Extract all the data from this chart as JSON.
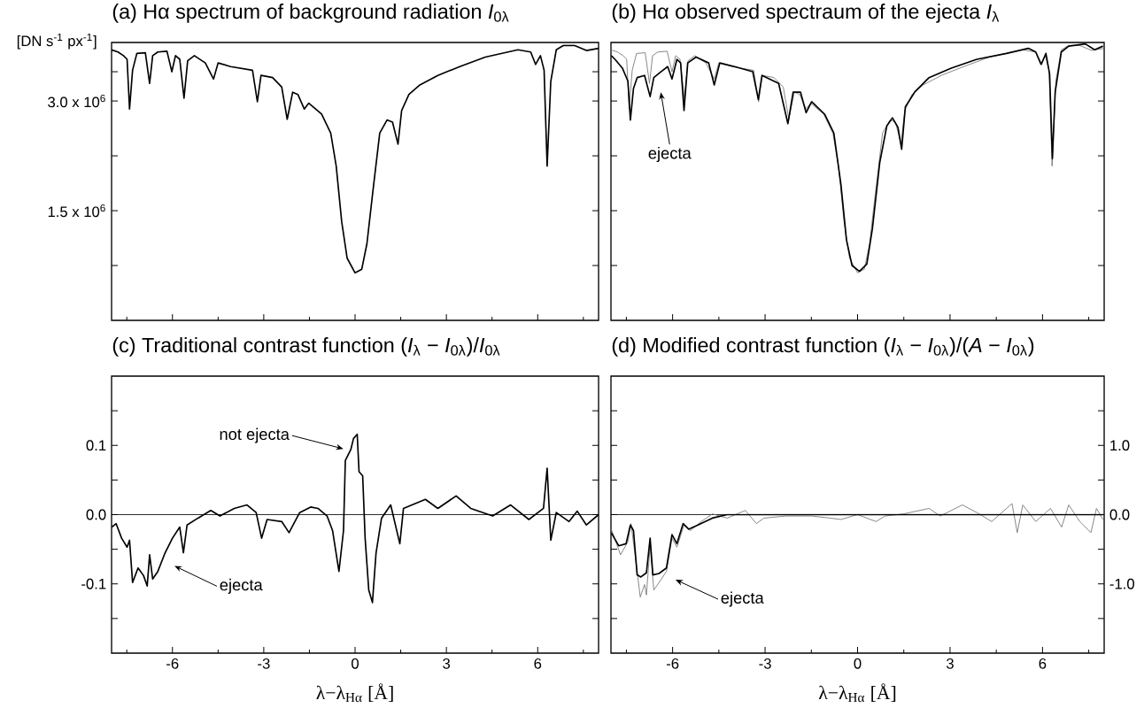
{
  "chart_data": [
    {
      "type": "line",
      "title": "(a) Hα spectrum of background radiation  *I*$_{0λ}$",
      "ylabel": "[DN s$^{-1}$ px$^{-1}$]",
      "xlim": [
        -8,
        8
      ],
      "ylim": [
        0,
        3800000
      ],
      "xticks": [
        {
          "value": -7.5,
          "label": null
        },
        -6,
        {
          "value": -4.5,
          "label": null
        },
        -3,
        {
          "value": -1.5,
          "label": null
        },
        0,
        {
          "value": 1.5,
          "label": null
        },
        3,
        {
          "value": 4.5,
          "label": null
        },
        6,
        {
          "value": 7.5,
          "label": null
        }
      ],
      "yticks": [
        {
          "value": 750000,
          "label": null
        },
        {
          "value": 1500000,
          "label": "1.5 x 10$^{6}$"
        },
        {
          "value": 2250000,
          "label": null
        },
        {
          "value": 3000000,
          "label": "3.0 x 10$^{6}$"
        },
        {
          "value": 3400000,
          "label": null
        }
      ],
      "tick_labels": "y",
      "series": [
        {
          "color": "#000000",
          "x": [
            -8.0,
            -7.79,
            -7.61,
            -7.49,
            -7.41,
            -7.31,
            -7.17,
            -6.89,
            -6.75,
            -6.65,
            -6.48,
            -6.18,
            -6.02,
            -5.9,
            -5.76,
            -5.62,
            -5.5,
            -5.28,
            -4.92,
            -4.65,
            -4.5,
            -4.09,
            -3.37,
            -3.21,
            -3.09,
            -2.71,
            -2.41,
            -2.23,
            -2.05,
            -1.88,
            -1.67,
            -1.52,
            -1.1,
            -0.8,
            -0.62,
            -0.44,
            -0.26,
            0,
            0.22,
            0.39,
            0.57,
            0.81,
            1.05,
            1.23,
            1.41,
            1.53,
            1.77,
            2.13,
            2.72,
            3.44,
            4.28,
            5.35,
            5.77,
            5.93,
            6.09,
            6.21,
            6.31,
            6.43,
            6.61,
            6.85,
            7.2,
            7.6,
            8.0
          ],
          "values": [
            3700000,
            3670000,
            3620000,
            3570000,
            2890000,
            3420000,
            3650000,
            3660000,
            3240000,
            3620000,
            3670000,
            3680000,
            3400000,
            3620000,
            3570000,
            3040000,
            3550000,
            3620000,
            3520000,
            3300000,
            3520000,
            3470000,
            3420000,
            2990000,
            3350000,
            3320000,
            3190000,
            2750000,
            3120000,
            3090000,
            2890000,
            2970000,
            2820000,
            2560000,
            2110000,
            1350000,
            850000,
            650000,
            700000,
            1050000,
            1710000,
            2560000,
            2740000,
            2710000,
            2410000,
            2870000,
            3090000,
            3220000,
            3350000,
            3470000,
            3600000,
            3700000,
            3670000,
            3500000,
            3620000,
            3420000,
            2110000,
            3270000,
            3700000,
            3760000,
            3760000,
            3690000,
            3720000
          ]
        }
      ]
    },
    {
      "type": "line",
      "title": "(b) Hα observed spectraum of the ejecta  *I*$_{λ}$",
      "xlim": [
        -8,
        8
      ],
      "ylim": [
        0,
        3800000
      ],
      "xticks": [
        {
          "value": -7.5,
          "label": null
        },
        -6,
        {
          "value": -4.5,
          "label": null
        },
        -3,
        {
          "value": -1.5,
          "label": null
        },
        0,
        {
          "value": 1.5,
          "label": null
        },
        3,
        {
          "value": 4.5,
          "label": null
        },
        6,
        {
          "value": 7.5,
          "label": null
        }
      ],
      "tick_labels": false,
      "yticks": [
        {
          "value": 750000,
          "label": null
        },
        {
          "value": 1500000,
          "label": null
        },
        {
          "value": 2250000,
          "label": null
        },
        {
          "value": 3000000,
          "label": null
        },
        {
          "value": 3400000,
          "label": null
        }
      ],
      "annotations": [
        "ejecta"
      ],
      "series": [
        {
          "color": "#707070",
          "x": [
            -8.0,
            -7.79,
            -7.61,
            -7.49,
            -7.41,
            -7.31,
            -7.17,
            -6.89,
            -6.75,
            -6.65,
            -6.48,
            -6.18,
            -6.02,
            -5.9,
            -5.76,
            -5.62,
            -5.5,
            -5.28,
            -4.92,
            -4.65,
            -4.5,
            -4.09,
            -3.37,
            -3.21,
            -3.09,
            -2.71,
            -2.41,
            -2.23,
            -2.05,
            -1.88,
            -1.67,
            -1.52,
            -1.1,
            -0.8,
            -0.62,
            -0.44,
            -0.26,
            0,
            0.22,
            0.39,
            0.57,
            0.81,
            1.05,
            1.23,
            1.41,
            1.53,
            1.77,
            2.13,
            2.72,
            3.44,
            4.28,
            5.35,
            5.77,
            5.93,
            6.09,
            6.21,
            6.31,
            6.43,
            6.61,
            6.85,
            7.2,
            7.6,
            8.0
          ],
          "values": [
            3700000,
            3670000,
            3620000,
            3570000,
            2890000,
            3420000,
            3650000,
            3660000,
            3240000,
            3620000,
            3670000,
            3680000,
            3400000,
            3620000,
            3570000,
            3040000,
            3550000,
            3620000,
            3520000,
            3300000,
            3520000,
            3470000,
            3420000,
            2990000,
            3350000,
            3320000,
            3190000,
            2750000,
            3120000,
            3090000,
            2890000,
            2970000,
            2820000,
            2560000,
            2110000,
            1350000,
            850000,
            650000,
            700000,
            1050000,
            1710000,
            2560000,
            2740000,
            2710000,
            2410000,
            2870000,
            3090000,
            3220000,
            3350000,
            3470000,
            3600000,
            3700000,
            3670000,
            3500000,
            3620000,
            3420000,
            2110000,
            3270000,
            3700000,
            3760000,
            3760000,
            3690000,
            3720000
          ]
        },
        {
          "color": "#000000",
          "x": [
            -7.99,
            -7.87,
            -7.63,
            -7.45,
            -7.37,
            -7.27,
            -7.15,
            -6.91,
            -6.73,
            -6.61,
            -6.38,
            -6.16,
            -6.02,
            -5.86,
            -5.74,
            -5.63,
            -5.51,
            -5.24,
            -4.83,
            -4.65,
            -4.47,
            -3.99,
            -3.4,
            -3.22,
            -3.1,
            -2.56,
            -2.26,
            -2.09,
            -1.85,
            -1.67,
            -1.49,
            -1.07,
            -0.77,
            -0.54,
            -0.36,
            -0.18,
            0.06,
            0.3,
            0.48,
            0.72,
            0.95,
            1.13,
            1.31,
            1.43,
            1.55,
            1.85,
            2.32,
            3.04,
            3.87,
            4.83,
            5.54,
            5.78,
            5.96,
            6.11,
            6.23,
            6.32,
            6.41,
            6.61,
            6.85,
            7.39,
            7.69,
            7.96
          ],
          "values": [
            3620000,
            3570000,
            3450000,
            3270000,
            2740000,
            3170000,
            3320000,
            3350000,
            3060000,
            3320000,
            3400000,
            3470000,
            3300000,
            3570000,
            3520000,
            2870000,
            3520000,
            3600000,
            3520000,
            3220000,
            3520000,
            3470000,
            3400000,
            3020000,
            3350000,
            3240000,
            2690000,
            3120000,
            3120000,
            2840000,
            2990000,
            2820000,
            2560000,
            1860000,
            1100000,
            750000,
            670000,
            770000,
            1250000,
            2160000,
            2660000,
            2770000,
            2640000,
            2340000,
            2920000,
            3120000,
            3320000,
            3450000,
            3570000,
            3650000,
            3720000,
            3670000,
            3500000,
            3650000,
            3370000,
            2210000,
            3120000,
            3670000,
            3750000,
            3780000,
            3700000,
            3750000
          ]
        }
      ]
    },
    {
      "type": "line",
      "title": "(c) Traditional contrast function  (*I*$_{λ}$ − *I*$_{0λ}$)/*I*$_{0λ}$",
      "xlabel": "λ−λ$_{Hα}$ [Å]",
      "xlim": [
        -8,
        8
      ],
      "ylim": [
        -0.2,
        0.2
      ],
      "xticks": [
        {
          "value": -7.5,
          "label": null
        },
        -6,
        {
          "value": -4.5,
          "label": null
        },
        -3,
        {
          "value": -1.5,
          "label": null
        },
        0,
        {
          "value": 1.5,
          "label": null
        },
        3,
        {
          "value": 4.5,
          "label": null
        },
        6,
        {
          "value": 7.5,
          "label": null
        }
      ],
      "yticks": [
        {
          "value": -0.15,
          "label": null
        },
        -0.1,
        {
          "value": -0.05,
          "label": null
        },
        {
          "value": 0,
          "label": "0.0"
        },
        {
          "value": 0.05,
          "label": null
        },
        0.1,
        {
          "value": 0.15,
          "label": null
        }
      ],
      "ref_lines": [
        {
          "axis": "y",
          "value": 0,
          "color": "#000000"
        }
      ],
      "annotations": [
        "not ejecta",
        "ejecta"
      ],
      "series": [
        {
          "color": "#000000",
          "x": [
            -7.99,
            -7.85,
            -7.67,
            -7.49,
            -7.41,
            -7.31,
            -7.13,
            -6.95,
            -6.83,
            -6.75,
            -6.65,
            -6.48,
            -6.24,
            -6.0,
            -5.76,
            -5.64,
            -5.52,
            -5.16,
            -4.74,
            -4.44,
            -3.97,
            -3.55,
            -3.25,
            -3.07,
            -2.89,
            -2.41,
            -2.17,
            -1.82,
            -1.46,
            -1.22,
            -0.92,
            -0.74,
            -0.53,
            -0.38,
            -0.32,
            -0.14,
            -0.05,
            0.07,
            0.13,
            0.25,
            0.33,
            0.45,
            0.57,
            0.69,
            0.87,
            1.17,
            1.47,
            1.59,
            2.31,
            2.72,
            3.32,
            3.8,
            4.52,
            5.11,
            5.71,
            6.19,
            6.31,
            6.43,
            6.61,
            7.03,
            7.3,
            7.6,
            8.0
          ],
          "values": [
            -0.018,
            -0.013,
            -0.034,
            -0.047,
            -0.037,
            -0.098,
            -0.077,
            -0.088,
            -0.103,
            -0.058,
            -0.093,
            -0.082,
            -0.055,
            -0.034,
            -0.018,
            -0.055,
            -0.015,
            -0.005,
            0.006,
            -0.002,
            0.009,
            0.014,
            0.003,
            -0.034,
            -0.007,
            -0.01,
            -0.026,
            0.003,
            0.011,
            0.009,
            -0.002,
            -0.023,
            -0.082,
            -0.023,
            0.078,
            0.094,
            0.11,
            0.116,
            0.062,
            0.056,
            -0.034,
            -0.109,
            -0.127,
            -0.055,
            -0.005,
            0.014,
            -0.042,
            0.009,
            0.022,
            0.009,
            0.027,
            0.009,
            -0.002,
            0.014,
            -0.007,
            0.009,
            0.067,
            -0.037,
            0.003,
            -0.01,
            0.005,
            -0.015,
            0.0
          ]
        }
      ]
    },
    {
      "type": "line",
      "title": "(d) Modified contrast function  (*I*$_{λ}$ − *I*$_{0λ}$)/(*A* − *I*$_{0λ}$)",
      "xlabel": "λ−λ$_{Hα}$ [Å]",
      "xlim": [
        -8,
        8
      ],
      "ylim": [
        -2,
        2
      ],
      "xticks": [
        {
          "value": -7.5,
          "label": null
        },
        -6,
        {
          "value": -4.5,
          "label": null
        },
        -3,
        {
          "value": -1.5,
          "label": null
        },
        0,
        {
          "value": 1.5,
          "label": null
        },
        3,
        {
          "value": 4.5,
          "label": null
        },
        6,
        {
          "value": 7.5,
          "label": null
        }
      ],
      "yticks": [
        {
          "value": -1.5,
          "label": null
        },
        {
          "value": -1,
          "label": "-1.0"
        },
        {
          "value": -0.5,
          "label": null
        },
        {
          "value": 0,
          "label": "0.0"
        },
        {
          "value": 0.5,
          "label": null
        },
        {
          "value": 1,
          "label": "1.0"
        },
        {
          "value": 1.5,
          "label": null
        }
      ],
      "ref_lines": [
        {
          "axis": "y",
          "value": 0,
          "color": "#000000"
        }
      ],
      "annotations": [
        "ejecta"
      ],
      "series": [
        {
          "color": "#707070",
          "x": [
            -7.99,
            -7.69,
            -7.45,
            -7.35,
            -7.21,
            -7.05,
            -6.91,
            -6.85,
            -6.73,
            -6.61,
            -6.44,
            -6.2,
            -6.02,
            -5.86,
            -5.63,
            -5.42,
            -5.07,
            -4.71,
            -4.23,
            -3.64,
            -3.28,
            -3.04,
            -2.32,
            -1.49,
            -0.89,
            -0.54,
            0,
            0.6,
            0.89,
            1.49,
            2.32,
            2.68,
            3.4,
            3.87,
            4.35,
            5.01,
            5.18,
            5.36,
            5.78,
            6.26,
            6.62,
            6.85,
            7.21,
            7.57,
            7.75,
            7.96
          ],
          "values": [
            -0.21,
            -0.58,
            -0.39,
            -0.13,
            -0.61,
            -1.19,
            -1.01,
            -1.16,
            -0.45,
            -1.09,
            -0.98,
            -0.82,
            -0.34,
            -0.47,
            -0.15,
            -0.23,
            -0.1,
            0.01,
            -0.05,
            0.06,
            -0.13,
            -0.05,
            -0.02,
            -0.02,
            -0.05,
            -0.07,
            0,
            -0.1,
            -0.02,
            0.01,
            0.09,
            -0.02,
            0.14,
            0.03,
            -0.1,
            0.16,
            -0.26,
            0.14,
            -0.1,
            0.09,
            -0.18,
            0.14,
            -0.1,
            -0.26,
            0.09,
            -0.07
          ]
        },
        {
          "color": "#000000",
          "x": [
            -7.99,
            -7.75,
            -7.51,
            -7.37,
            -7.27,
            -7.15,
            -7.03,
            -6.85,
            -6.73,
            -6.64,
            -6.44,
            -6.2,
            -6.02,
            -5.86,
            -5.66,
            -5.48,
            -5.18,
            -4.71,
            -4.23,
            -3.28,
            0,
            7.96
          ],
          "values": [
            -0.26,
            -0.45,
            -0.42,
            -0.15,
            -0.23,
            -0.87,
            -0.9,
            -0.84,
            -0.34,
            -0.87,
            -0.85,
            -0.77,
            -0.29,
            -0.42,
            -0.13,
            -0.21,
            -0.15,
            -0.05,
            0,
            0,
            0,
            0
          ]
        }
      ]
    }
  ]
}
